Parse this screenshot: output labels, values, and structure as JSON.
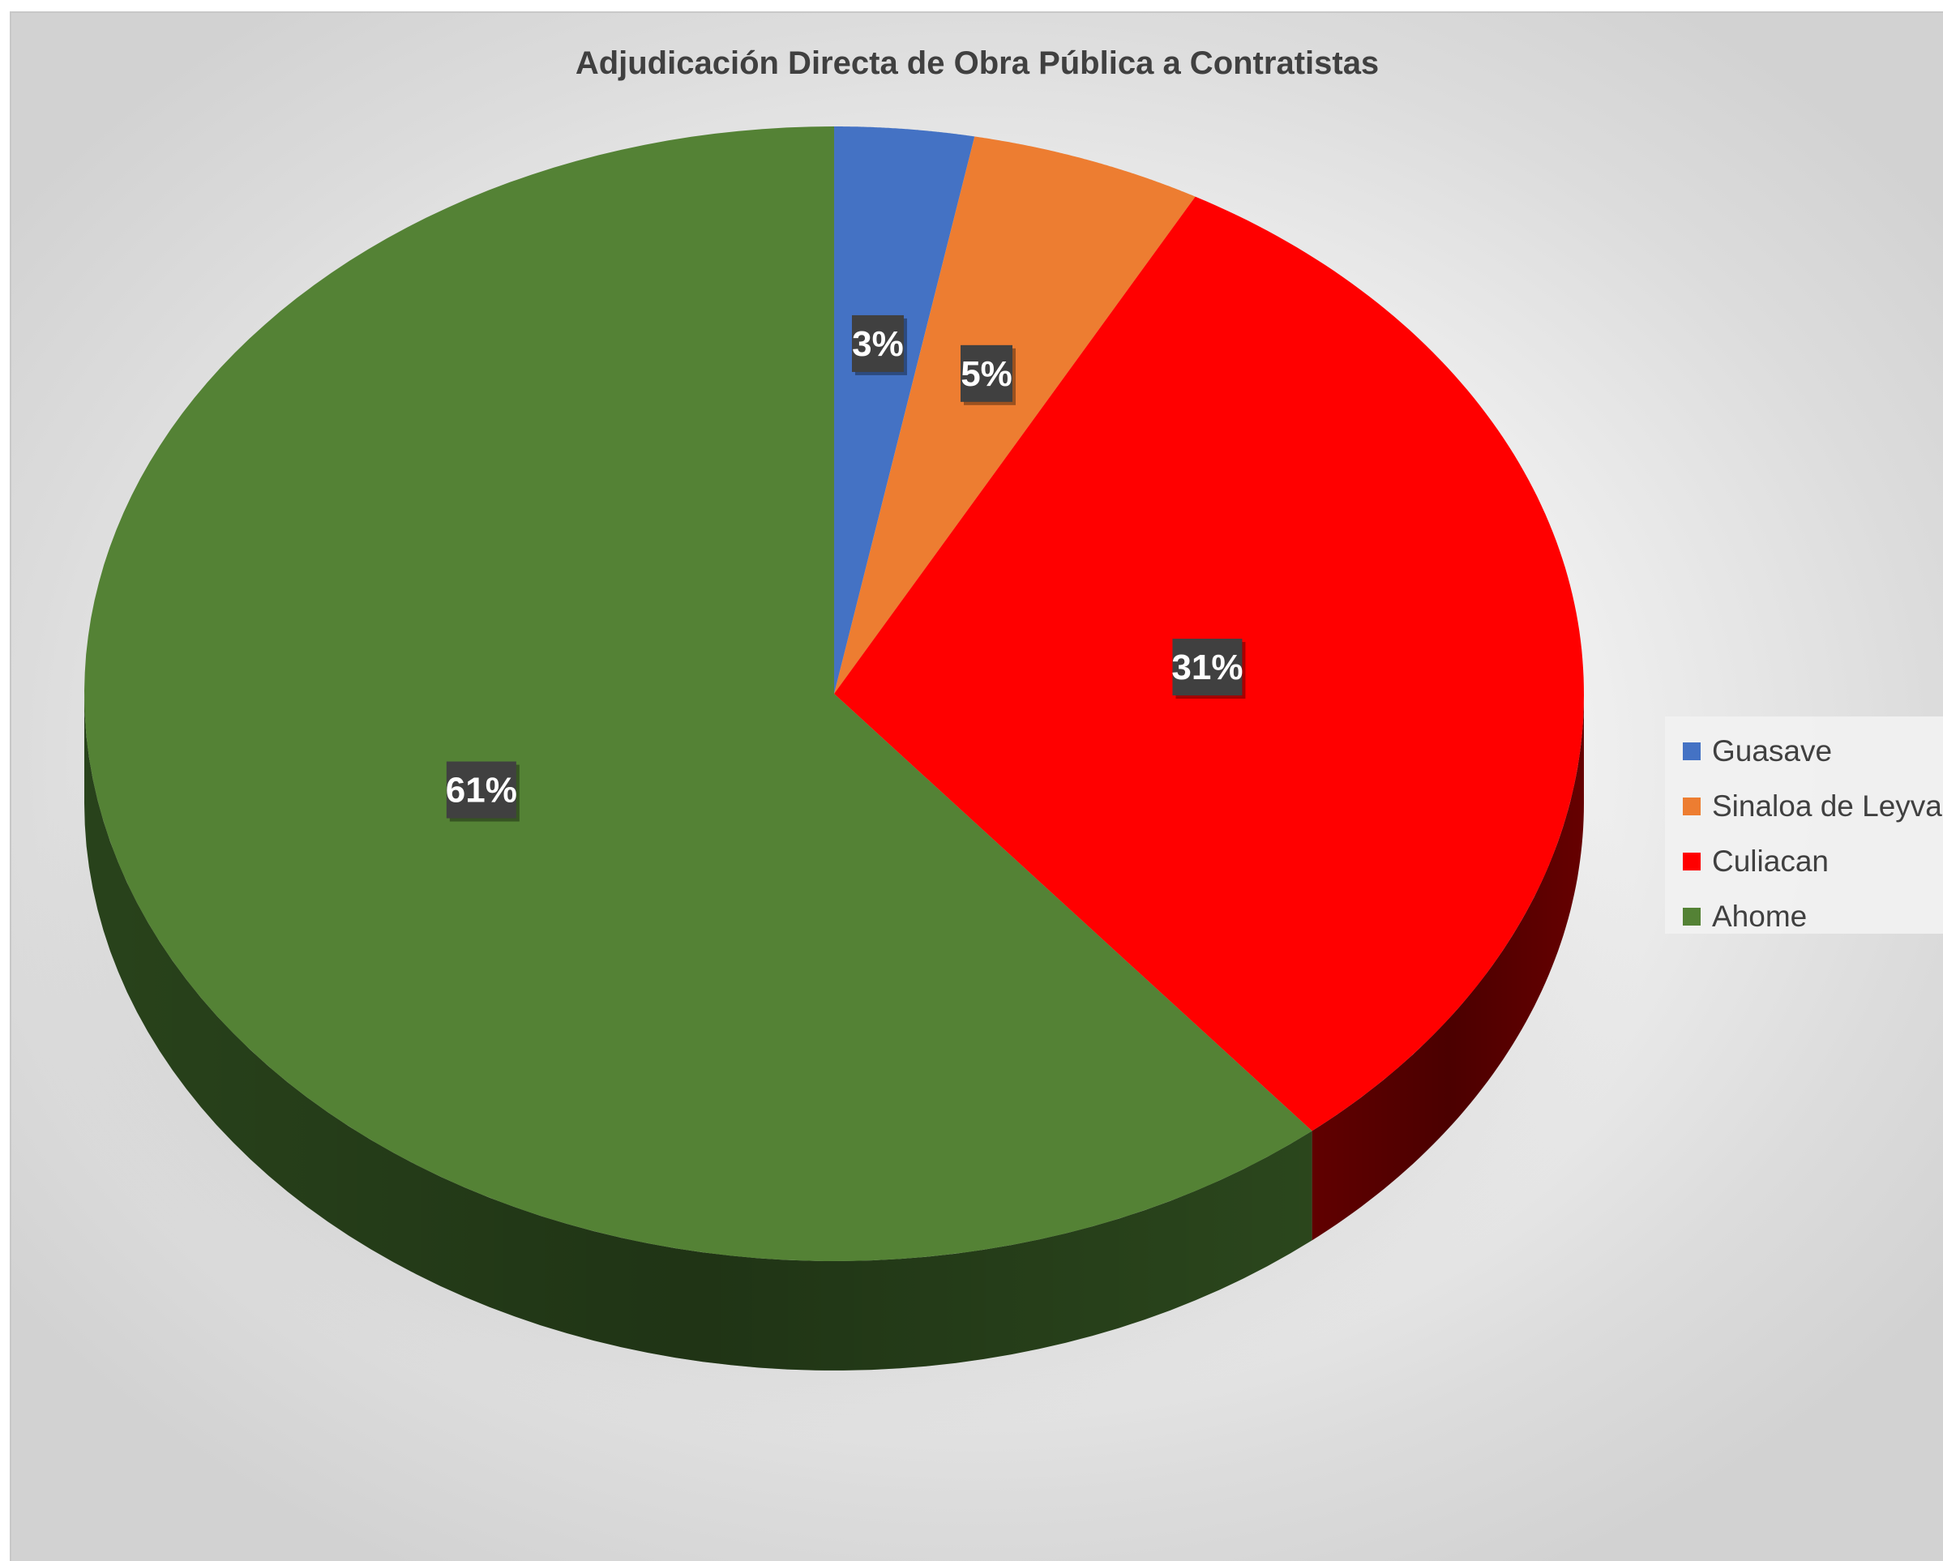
{
  "chart_data": {
    "type": "pie",
    "title": "Adjudicación Directa de Obra Pública a Contratistas",
    "categories": [
      "Guasave",
      "Sinaloa de Leyva",
      "Culiacan",
      "Ahome"
    ],
    "values": [
      3,
      5,
      31,
      61
    ],
    "data_labels": [
      "3%",
      "5%",
      "31%",
      "61%"
    ],
    "colors": [
      "#4472C4",
      "#ED7D31",
      "#FF0000",
      "#548235"
    ],
    "side_colors": [
      "#2a4a86",
      "#9a4f1c",
      "#6b0000",
      "#2d4a1e"
    ],
    "legend_position": "right",
    "style": "3d"
  }
}
